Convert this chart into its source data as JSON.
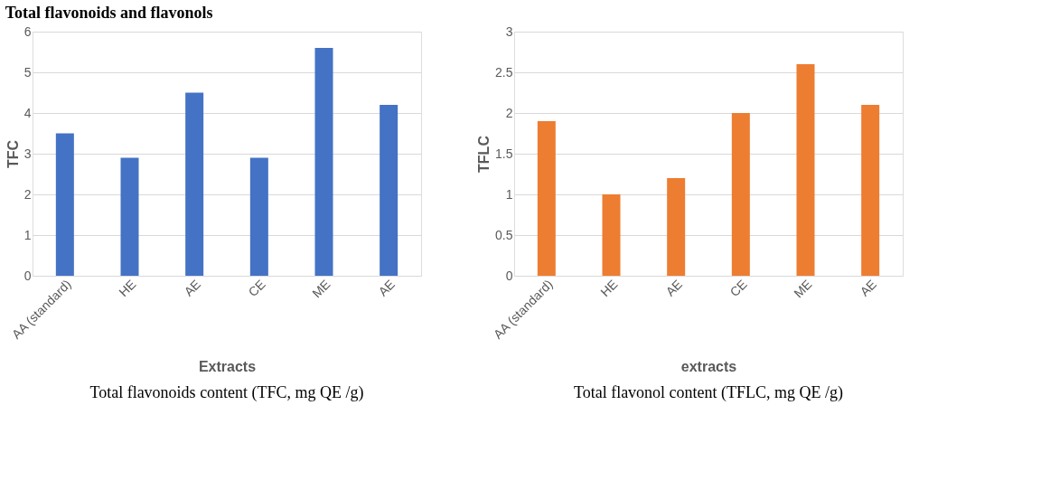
{
  "chart_data": [
    {
      "type": "bar",
      "title": "Total flavonoids and flavonols",
      "xlabel": "Extracts",
      "ylabel": "TFC",
      "categories": [
        "AA (standard)",
        "HE",
        "AE",
        "CE",
        "ME",
        "AE"
      ],
      "values": [
        3.5,
        2.9,
        4.5,
        2.9,
        5.6,
        4.2
      ],
      "color": "#4472c4",
      "ylim": [
        0,
        6
      ],
      "yticks": [
        0,
        1,
        2,
        3,
        4,
        5,
        6
      ],
      "grid": "y",
      "annotations": [
        "Total flavonoids content (TFC, mg QE /g)"
      ]
    },
    {
      "type": "bar",
      "xlabel": "extracts",
      "ylabel": "TFLC",
      "categories": [
        "AA (standard)",
        "HE",
        "AE",
        "CE",
        "ME",
        "AE"
      ],
      "values": [
        1.9,
        1.0,
        1.2,
        2.0,
        2.6,
        2.1
      ],
      "color": "#ed7d31",
      "ylim": [
        0,
        3
      ],
      "yticks": [
        0,
        0.5,
        1,
        1.5,
        2,
        2.5,
        3
      ],
      "grid": "y",
      "annotations": [
        "Total flavonol content (TFLC, mg QE /g)"
      ]
    }
  ]
}
